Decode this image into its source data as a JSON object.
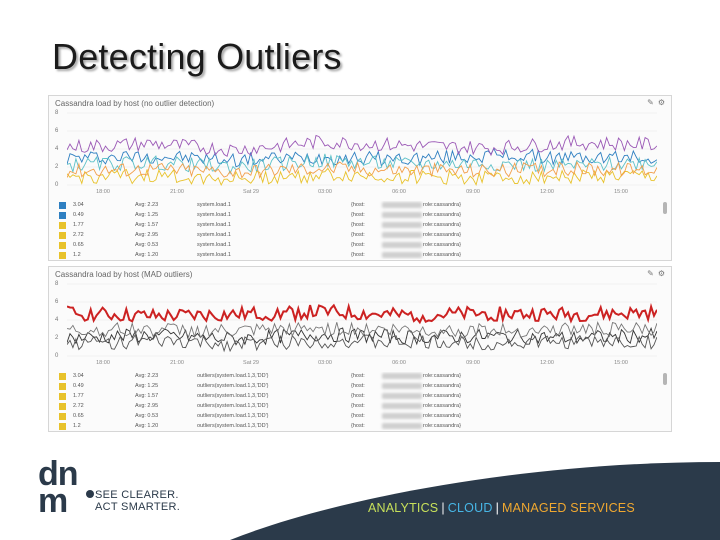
{
  "slide": {
    "title": "Detecting Outliers"
  },
  "panels": [
    {
      "title": "Cassandra load by host (no outlier detection)",
      "y_ticks": [
        "8",
        "6",
        "4",
        "2",
        "0"
      ],
      "x_ticks": [
        "18:00",
        "21:00",
        "Sat 29",
        "03:00",
        "06:00",
        "09:00",
        "12:00",
        "15:00"
      ],
      "legend": [
        {
          "color": "#2e7fc1",
          "value": "3.04",
          "avg": "Avg: 2.23",
          "metric": "system.load.1",
          "host": "{host:",
          "host_tail": "role:cassandra}"
        },
        {
          "color": "#2e7fc1",
          "value": "0.49",
          "avg": "Avg: 1.25",
          "metric": "system.load.1",
          "host": "{host:",
          "host_tail": "role:cassandra}"
        },
        {
          "color": "#e8c22b",
          "value": "1.77",
          "avg": "Avg: 1.57",
          "metric": "system.load.1",
          "host": "{host:",
          "host_tail": "role:cassandra}"
        },
        {
          "color": "#e8c22b",
          "value": "2.72",
          "avg": "Avg: 2.95",
          "metric": "system.load.1",
          "host": "{host:",
          "host_tail": "role:cassandra}"
        },
        {
          "color": "#e8c22b",
          "value": "0.65",
          "avg": "Avg: 0.53",
          "metric": "system.load.1",
          "host": "{host:",
          "host_tail": "role:cassandra}"
        },
        {
          "color": "#e8c22b",
          "value": "1.2",
          "avg": "Avg: 1.20",
          "metric": "system.load.1",
          "host": "{host:",
          "host_tail": "role:cassandra}"
        }
      ]
    },
    {
      "title": "Cassandra load by host (MAD outliers)",
      "y_ticks": [
        "8",
        "6",
        "4",
        "2",
        "0"
      ],
      "x_ticks": [
        "18:00",
        "21:00",
        "Sat 29",
        "03:00",
        "06:00",
        "09:00",
        "12:00",
        "15:00"
      ],
      "legend": [
        {
          "color": "#e8c22b",
          "value": "3.04",
          "avg": "Avg: 2.23",
          "metric": "outliers(system.load.1,3,'DD')",
          "host": "{host:",
          "host_tail": "role:cassandra}"
        },
        {
          "color": "#e8c22b",
          "value": "0.49",
          "avg": "Avg: 1.25",
          "metric": "outliers(system.load.1,3,'DD')",
          "host": "{host:",
          "host_tail": "role:cassandra}"
        },
        {
          "color": "#e8c22b",
          "value": "1.77",
          "avg": "Avg: 1.57",
          "metric": "outliers(system.load.1,3,'DD')",
          "host": "{host:",
          "host_tail": "role:cassandra}"
        },
        {
          "color": "#e8c22b",
          "value": "2.72",
          "avg": "Avg: 2.95",
          "metric": "outliers(system.load.1,3,'DD')",
          "host": "{host:",
          "host_tail": "role:cassandra}"
        },
        {
          "color": "#e8c22b",
          "value": "0.65",
          "avg": "Avg: 0.53",
          "metric": "outliers(system.load.1,3,'DD')",
          "host": "{host:",
          "host_tail": "role:cassandra}"
        },
        {
          "color": "#e8c22b",
          "value": "1.2",
          "avg": "Avg: 1.20",
          "metric": "outliers(system.load.1,3,'DD')",
          "host": "{host:",
          "host_tail": "role:cassandra}"
        }
      ]
    }
  ],
  "chart_data": [
    {
      "type": "line",
      "title": "Cassandra load by host (no outlier detection)",
      "ylim": [
        0,
        8
      ],
      "x": [
        "18:00",
        "21:00",
        "Sat 29",
        "03:00",
        "06:00",
        "09:00",
        "12:00",
        "15:00"
      ],
      "series": [
        {
          "color": "#2e7fc1",
          "values": [
            3.0,
            3.2,
            2.8,
            3.1,
            2.9,
            3.3,
            3.0,
            3.1
          ]
        },
        {
          "color": "#9b59b6",
          "values": [
            4.2,
            4.6,
            3.9,
            4.8,
            4.4,
            4.1,
            4.7,
            4.5
          ]
        },
        {
          "color": "#5dc1c8",
          "values": [
            2.2,
            2.5,
            2.0,
            2.7,
            2.3,
            2.4,
            2.1,
            2.6
          ]
        },
        {
          "color": "#e8c22b",
          "values": [
            0.8,
            1.0,
            0.7,
            1.1,
            0.9,
            0.8,
            1.0,
            0.9
          ]
        },
        {
          "color": "#f29f4b",
          "values": [
            1.6,
            1.8,
            1.5,
            1.9,
            1.7,
            1.6,
            1.8,
            1.7
          ]
        }
      ]
    },
    {
      "type": "line",
      "title": "Cassandra load by host (MAD outliers)",
      "ylim": [
        0,
        8
      ],
      "x": [
        "18:00",
        "21:00",
        "Sat 29",
        "03:00",
        "06:00",
        "09:00",
        "12:00",
        "15:00"
      ],
      "series": [
        {
          "color": "#cc2222",
          "values": [
            4.8,
            4.4,
            4.6,
            4.9,
            4.5,
            4.7,
            4.6,
            4.8
          ]
        },
        {
          "color": "#333333",
          "values": [
            2.0,
            2.3,
            1.9,
            2.4,
            2.1,
            2.2,
            2.0,
            2.3
          ]
        },
        {
          "color": "#555555",
          "values": [
            1.4,
            1.6,
            1.3,
            1.7,
            1.5,
            1.4,
            1.6,
            1.5
          ]
        },
        {
          "color": "#777777",
          "values": [
            2.8,
            3.0,
            2.7,
            3.1,
            2.9,
            2.8,
            3.0,
            2.9
          ]
        }
      ]
    }
  ],
  "footer": {
    "logo_text": "dnm",
    "tagline_1": "SEE CLEARER.",
    "tagline_2": "ACT SMARTER.",
    "analytics": "ANALYTICS",
    "cloud": "CLOUD",
    "managed": "MANAGED SERVICES",
    "separator": "|",
    "colors": {
      "analytics": "#c7e05a",
      "cloud": "#47b6e6",
      "managed": "#f0a830",
      "swoosh": "#2b3a4a"
    }
  }
}
